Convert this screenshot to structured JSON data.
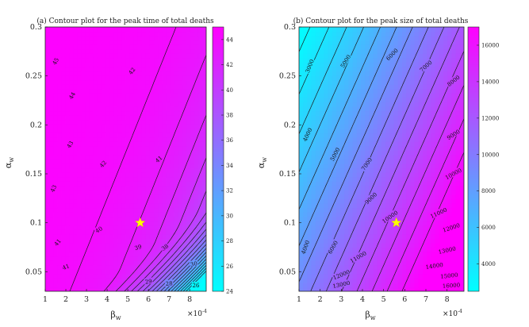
{
  "chart_data": [
    {
      "type": "contour",
      "title": "(a) Contour plot for the peak time of total deaths",
      "xlabel": "β_w",
      "ylabel": "α_w",
      "x_multiplier": "×10^-4",
      "xlim": [
        1,
        8.8
      ],
      "ylim": [
        0.03,
        0.3
      ],
      "xticks": [
        "1",
        "2",
        "3",
        "4",
        "5",
        "6",
        "7",
        "8"
      ],
      "yticks": [
        "0.05",
        "0.1",
        "0.15",
        "0.2",
        "0.25",
        "0.3"
      ],
      "colorbar": {
        "range": [
          24,
          45
        ],
        "ticks": [
          "24",
          "26",
          "28",
          "30",
          "32",
          "34",
          "36",
          "38",
          "40",
          "42",
          "44"
        ],
        "colormap": [
          "#00ffff",
          "#ff00ff"
        ]
      },
      "contour_labels": [
        "45",
        "44",
        "43",
        "42",
        "41",
        "40",
        "39",
        "38",
        "37",
        "36",
        "35",
        "34",
        "33",
        "32",
        "31",
        "30",
        "29",
        "28",
        "27",
        "26"
      ],
      "marker": {
        "shape": "star",
        "x": 5.6,
        "y": 0.1,
        "color": "#ffff00"
      }
    },
    {
      "type": "contour",
      "title": "(b) Contour plot for the peak size of total deaths",
      "xlabel": "β_w",
      "ylabel": "α_w",
      "x_multiplier": "×10^-4",
      "xlim": [
        1,
        8.8
      ],
      "ylim": [
        0.03,
        0.3
      ],
      "xticks": [
        "1",
        "2",
        "3",
        "4",
        "5",
        "6",
        "7",
        "8"
      ],
      "yticks": [
        "0.05",
        "0.1",
        "0.15",
        "0.2",
        "0.25",
        "0.3"
      ],
      "colorbar": {
        "range": [
          2500,
          17000
        ],
        "ticks": [
          "4000",
          "6000",
          "8000",
          "10000",
          "12000",
          "14000",
          "16000"
        ],
        "colormap": [
          "#00ffff",
          "#ff00ff"
        ]
      },
      "contour_labels": [
        "3000",
        "4000",
        "5000",
        "6000",
        "7000",
        "8000",
        "9000",
        "10000",
        "11000",
        "12000",
        "13000",
        "14000",
        "15000",
        "16000"
      ],
      "marker": {
        "shape": "star",
        "x": 5.6,
        "y": 0.1,
        "color": "#ffff00"
      }
    }
  ]
}
